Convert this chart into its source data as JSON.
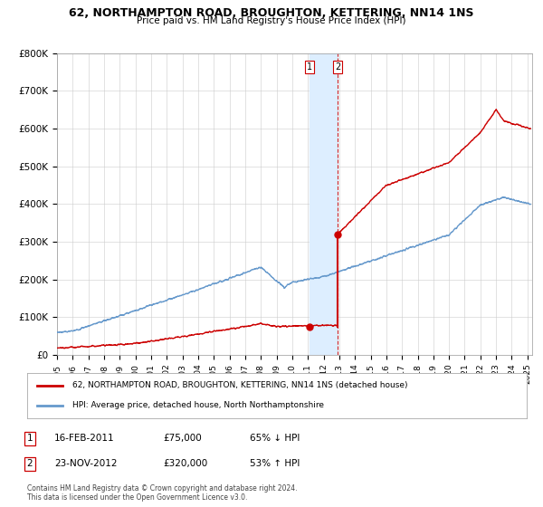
{
  "title": "62, NORTHAMPTON ROAD, BROUGHTON, KETTERING, NN14 1NS",
  "subtitle": "Price paid vs. HM Land Registry's House Price Index (HPI)",
  "ylim": [
    0,
    800000
  ],
  "yticks": [
    0,
    100000,
    200000,
    300000,
    400000,
    500000,
    600000,
    700000,
    800000
  ],
  "ytick_labels": [
    "£0",
    "£100K",
    "£200K",
    "£300K",
    "£400K",
    "£500K",
    "£600K",
    "£700K",
    "£800K"
  ],
  "red_line_color": "#cc0000",
  "blue_line_color": "#6699cc",
  "shade_color": "#ddeeff",
  "dashed_color": "#cc0000",
  "transaction1": {
    "date_num": 2011.12,
    "price": 75000,
    "label": "1",
    "date_str": "16-FEB-2011",
    "pct": "65% ↓ HPI"
  },
  "transaction2": {
    "date_num": 2012.9,
    "price": 320000,
    "label": "2",
    "date_str": "23-NOV-2012",
    "pct": "53% ↑ HPI"
  },
  "legend_red": "62, NORTHAMPTON ROAD, BROUGHTON, KETTERING, NN14 1NS (detached house)",
  "legend_blue": "HPI: Average price, detached house, North Northamptonshire",
  "footnote": "Contains HM Land Registry data © Crown copyright and database right 2024.\nThis data is licensed under the Open Government Licence v3.0.",
  "background_color": "#ffffff",
  "grid_color": "#cccccc",
  "xlim_start": 1995,
  "xlim_end": 2025.3
}
